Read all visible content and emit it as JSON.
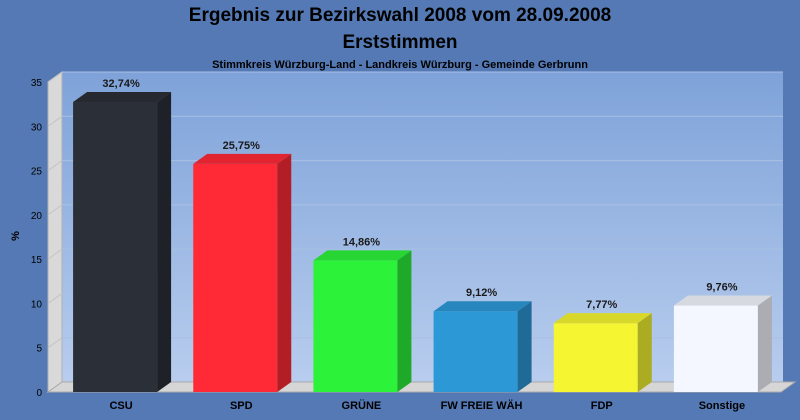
{
  "chart_data": {
    "type": "bar",
    "title_line1": "Ergebnis zur Bezirkswahl 2008 vom 28.09.2008",
    "title_line2": "Erststimmen",
    "subtitle": "Stimmkreis Würzburg-Land - Landkreis Würzburg - Gemeinde Gerbrunn",
    "ylabel": "%",
    "xlabel": "",
    "ylim": [
      0,
      35
    ],
    "yticks": [
      "0",
      "5",
      "10",
      "15",
      "20",
      "25",
      "30",
      "35"
    ],
    "grid": true,
    "categories": [
      "CSU",
      "SPD",
      "GRÜNE",
      "FW FREIE WÄH",
      "FDP",
      "Sonstige"
    ],
    "values": [
      32.74,
      25.75,
      14.86,
      9.12,
      7.77,
      9.76
    ],
    "value_labels": [
      "32,74%",
      "25,75%",
      "14,86%",
      "9,12%",
      "7,77%",
      "9,76%"
    ],
    "colors": [
      "#2b2f37",
      "#ff2a36",
      "#2cf23a",
      "#2c98d6",
      "#f6f531",
      "#f4f7ff"
    ]
  }
}
